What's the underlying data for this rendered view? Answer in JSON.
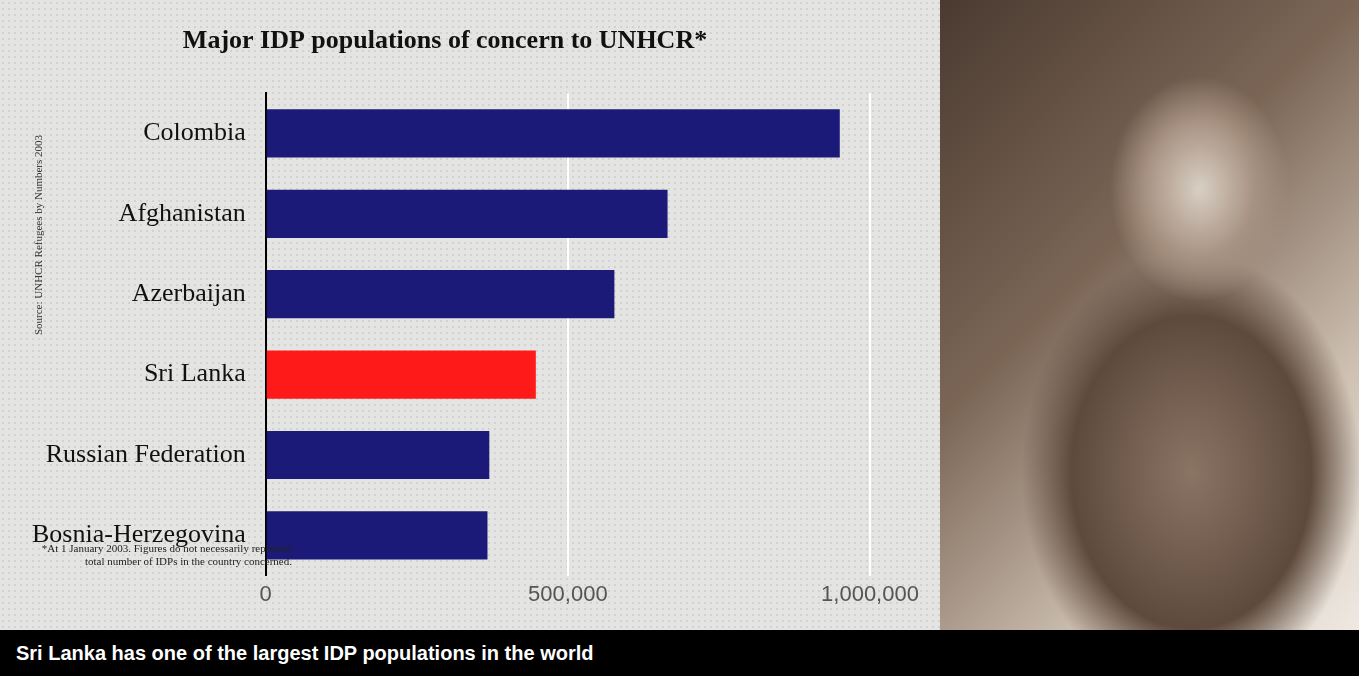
{
  "chart_data": {
    "type": "bar",
    "orientation": "horizontal",
    "title": "Major IDP populations of concern to UNHCR*",
    "source": "Source: UNHCR Refugees by Numbers 2003",
    "note": "*At 1 January 2003. Figures do not necessarily represent total number of IDPs in the country concerned.",
    "caption": "Sri Lanka has one of the largest IDP populations in the world",
    "categories": [
      "Colombia",
      "Afghanistan",
      "Azerbaijan",
      "Sri Lanka",
      "Russian Federation",
      "Bosnia-Herzegovina"
    ],
    "values": [
      950000,
      665000,
      577000,
      447000,
      370000,
      367000
    ],
    "colors": [
      "#1c1a78",
      "#1c1a78",
      "#1c1a78",
      "#ff1a1a",
      "#1c1a78",
      "#1c1a78"
    ],
    "xlim": [
      0,
      1000000
    ],
    "xticks": [
      0,
      {
        "value": 500000,
        "label": "500,000"
      },
      {
        "value": 1000000,
        "label": "1,000,000"
      }
    ],
    "grid": true,
    "legend": false,
    "data_labels": false
  }
}
